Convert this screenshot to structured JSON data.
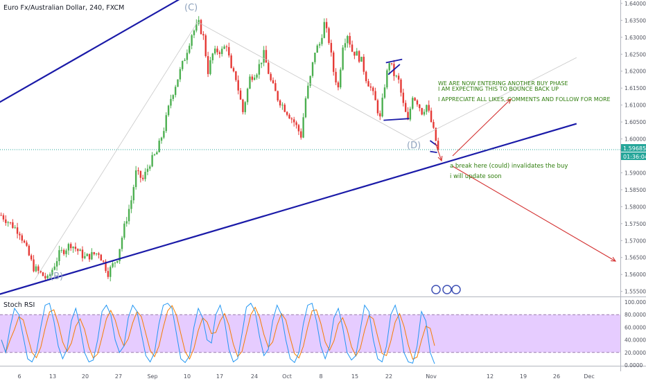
{
  "chart_data": [
    {
      "type": "candlestick",
      "symbol_title": "Euro Fx/Australian Dollar, 240, FXCM",
      "x_ticks": [
        "6",
        "13",
        "20",
        "27",
        "Sep",
        "10",
        "17",
        "24",
        "Oct",
        "8",
        "15",
        "22",
        "Nov",
        "12",
        "19",
        "26",
        "Dec"
      ],
      "y_ticks": [
        "1.64000",
        "1.63500",
        "1.63000",
        "1.62500",
        "1.62000",
        "1.61500",
        "1.61000",
        "1.60500",
        "1.60000",
        "1.59000",
        "1.58500",
        "1.58000",
        "1.57500",
        "1.57000",
        "1.56500",
        "1.56000",
        "1.55500"
      ],
      "ylim": [
        1.5535,
        1.641
      ],
      "last_price": "1.59685",
      "countdown": "01:36:04",
      "price_path": [
        [
          0,
          1.5775
        ],
        [
          8,
          1.5725
        ],
        [
          14,
          1.562
        ],
        [
          20,
          1.5585
        ],
        [
          25,
          1.566
        ],
        [
          30,
          1.569
        ],
        [
          36,
          1.565
        ],
        [
          42,
          1.5665
        ],
        [
          46,
          1.5605
        ],
        [
          50,
          1.565
        ],
        [
          53,
          1.574
        ],
        [
          56,
          1.582
        ],
        [
          58,
          1.59
        ],
        [
          61,
          1.588
        ],
        [
          64,
          1.593
        ],
        [
          67,
          1.596
        ],
        [
          70,
          1.603
        ],
        [
          73,
          1.612
        ],
        [
          76,
          1.618
        ],
        [
          79,
          1.624
        ],
        [
          82,
          1.631
        ],
        [
          85,
          1.634
        ],
        [
          87,
          1.63
        ],
        [
          89,
          1.62
        ],
        [
          91,
          1.625
        ],
        [
          93,
          1.626
        ],
        [
          95,
          1.626
        ],
        [
          97,
          1.628
        ],
        [
          99,
          1.62
        ],
        [
          101,
          1.618
        ],
        [
          104,
          1.608
        ],
        [
          107,
          1.618
        ],
        [
          110,
          1.62
        ],
        [
          113,
          1.625
        ],
        [
          116,
          1.617
        ],
        [
          119,
          1.612
        ],
        [
          123,
          1.608
        ],
        [
          126,
          1.605
        ],
        [
          129,
          1.601
        ],
        [
          131,
          1.612
        ],
        [
          133,
          1.618
        ],
        [
          135,
          1.626
        ],
        [
          137,
          1.628
        ],
        [
          139,
          1.634
        ],
        [
          141,
          1.629
        ],
        [
          143,
          1.62
        ],
        [
          145,
          1.615
        ],
        [
          147,
          1.628
        ],
        [
          149,
          1.631
        ],
        [
          151,
          1.626
        ],
        [
          153,
          1.625
        ],
        [
          155,
          1.623
        ],
        [
          157,
          1.618
        ],
        [
          159,
          1.615
        ],
        [
          161,
          1.611
        ],
        [
          163,
          1.606
        ],
        [
          165,
          1.616
        ],
        [
          167,
          1.623
        ],
        [
          169,
          1.619
        ],
        [
          171,
          1.617
        ],
        [
          173,
          1.61
        ],
        [
          175,
          1.605
        ],
        [
          177,
          1.613
        ],
        [
          179,
          1.611
        ],
        [
          181,
          1.608
        ],
        [
          183,
          1.61
        ],
        [
          185,
          1.605
        ],
        [
          187,
          1.5995
        ],
        [
          188,
          1.5965
        ]
      ],
      "stoch_rsi": {
        "label": "Stoch RSI",
        "y_ticks": [
          "100.0000",
          "80.0000",
          "60.0000",
          "40.0000",
          "20.0000",
          "0.0000"
        ],
        "ylim": [
          0,
          100
        ],
        "band": [
          20,
          80
        ],
        "k_color": "#2196f3",
        "d_color": "#f57c00",
        "k_values": [
          40,
          20,
          60,
          90,
          80,
          45,
          10,
          5,
          20,
          60,
          95,
          98,
          70,
          30,
          10,
          25,
          70,
          90,
          60,
          20,
          5,
          8,
          40,
          85,
          95,
          80,
          40,
          20,
          30,
          75,
          95,
          85,
          50,
          15,
          5,
          20,
          65,
          95,
          98,
          90,
          50,
          10,
          4,
          15,
          60,
          90,
          75,
          40,
          35,
          80,
          95,
          70,
          25,
          5,
          10,
          50,
          92,
          98,
          85,
          45,
          15,
          25,
          70,
          95,
          80,
          40,
          10,
          4,
          20,
          65,
          95,
          98,
          70,
          30,
          10,
          30,
          75,
          90,
          60,
          20,
          8,
          15,
          55,
          95,
          85,
          40,
          10,
          5,
          30,
          80,
          95,
          70,
          20,
          5,
          3,
          30,
          85,
          70,
          20,
          2
        ]
      },
      "overlay_lines": [
        {
          "name": "upper channel line",
          "color": "#1a1aa8",
          "from": [
            -1,
            1.6105
          ],
          "to": [
            97,
            1.649
          ]
        },
        {
          "name": "lower channel line",
          "color": "#1a1aa8",
          "from": [
            -1,
            1.554
          ],
          "to": [
            248,
            1.6045
          ]
        }
      ],
      "wave_labels": [
        "(B)",
        "(C)",
        "(D)"
      ],
      "annotations": {
        "green_1": "WE ARE NOW ENTERING ANOTHER BUY PHASE",
        "green_2": "I AM EXPECTING THIS TO BOUNCE BACK UP",
        "green_3": "I APPRECIATE ALL LIKES, COMMENTS AND FOLLOW FOR MORE",
        "green_4": "a break here (could) invalidates the buy",
        "green_5": "i will update soon"
      },
      "colors": {
        "up": "#4caf50",
        "down": "#e53935",
        "annotation": "#2e7d0c",
        "arrow": "#d32f2f",
        "band_fill": "#e6ccff"
      }
    }
  ]
}
